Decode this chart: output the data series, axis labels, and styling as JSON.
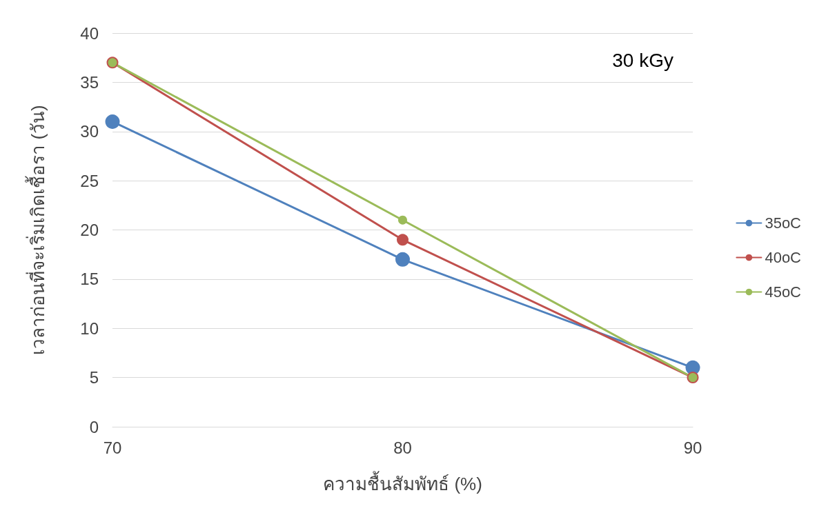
{
  "chart_data": {
    "type": "line",
    "xlabel": "ความชื้นสัมพัทธ์ (%)",
    "ylabel": "เวลาก่อนที่จะเริ่มเกิดเชื้อรา (วัน)",
    "annotations": [
      "30 kGy"
    ],
    "x": [
      70,
      80,
      90
    ],
    "xlim": [
      70,
      90
    ],
    "xticks": [
      70,
      80,
      90
    ],
    "ylim": [
      0,
      40
    ],
    "yticks": [
      0,
      5,
      10,
      15,
      20,
      25,
      30,
      35,
      40
    ],
    "grid": "y",
    "legend": "right",
    "marker": "circle",
    "line_style": "solid",
    "series": [
      {
        "name": "35oC",
        "color": "#4f81bd",
        "values": [
          31,
          17,
          6
        ]
      },
      {
        "name": "40oC",
        "color": "#c0504d",
        "values": [
          37,
          19,
          5
        ]
      },
      {
        "name": "45oC",
        "color": "#9bbb59",
        "values": [
          37,
          21,
          5
        ]
      }
    ]
  }
}
